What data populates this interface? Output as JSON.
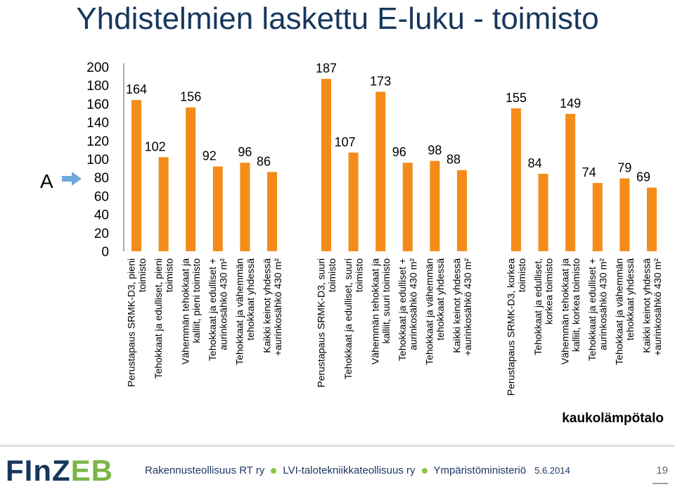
{
  "slide": {
    "title": "Yhdistelmien laskettu E-luku - toimisto",
    "annotation_letter": "A",
    "corner_label": "kaukolämpötalo"
  },
  "footer": {
    "logo_main": "FInZ",
    "logo_accent": "EB",
    "org1": "Rakennusteollisuus RT ry",
    "org2": "LVI-talotekniikkateollisuus ry",
    "org3": "Ympäristöministeriö",
    "date": "5.6.2014",
    "page": "19"
  },
  "colors": {
    "bar": "#f48c1a",
    "title": "#17375e",
    "arrow": "#6fa8dc",
    "footer_dot": "#8dc63f"
  },
  "chart_data": {
    "type": "bar",
    "title": "",
    "xlabel": "",
    "ylabel": "",
    "ylim": [
      0,
      200
    ],
    "yticks": [
      0,
      20,
      40,
      60,
      80,
      100,
      120,
      140,
      160,
      180,
      200
    ],
    "grid": false,
    "legend": "none",
    "groups": [
      {
        "categories": [
          "Perustapaus SRMK-D3, pieni toimisto",
          "Tehokkaat ja edulliset, pieni toimisto",
          "Vähemmän tehokkaat ja kalliit, pieni toimisto",
          "Tehokkaat ja edulliset + aurinkosähkö 430 m²",
          "Tehokkaat ja vähemmän tehokkaat yhdessä",
          "Kaikki keinot yhdessä +aurinkosähkö 430 m²"
        ],
        "values": [
          164,
          102,
          156,
          92,
          96,
          86
        ]
      },
      {
        "categories": [
          "Perustapaus SRMK-D3, suuri toimisto",
          "Tehokkaat ja edulliset, suuri toimisto",
          "Vähemmän tehokkaat ja kalliit, suuri toimisto",
          "Tehokkaat ja edulliset + aurinkosähkö 430 m²",
          "Tehokkaat ja vähemmän tehokkaat yhdessä",
          "Kaikki keinot yhdessä +aurinkosähkö 430 m²"
        ],
        "values": [
          187,
          107,
          173,
          96,
          98,
          88
        ]
      },
      {
        "categories": [
          "Perustapaus SRMK-D3, korkea toimisto",
          "Tehokkaat ja edulliset, korkea toimisto",
          "Vähemmän tehokkaat ja kalliit, korkea toimisto",
          "Tehokkaat ja edulliset + aurinkosähkö 430 m²",
          "Tehokkaat ja vähemmän tehokkaat yhdessä",
          "Kaikki keinot yhdessä +aurinkosähkö 430 m²"
        ],
        "values": [
          155,
          84,
          149,
          74,
          79,
          69
        ]
      }
    ]
  }
}
